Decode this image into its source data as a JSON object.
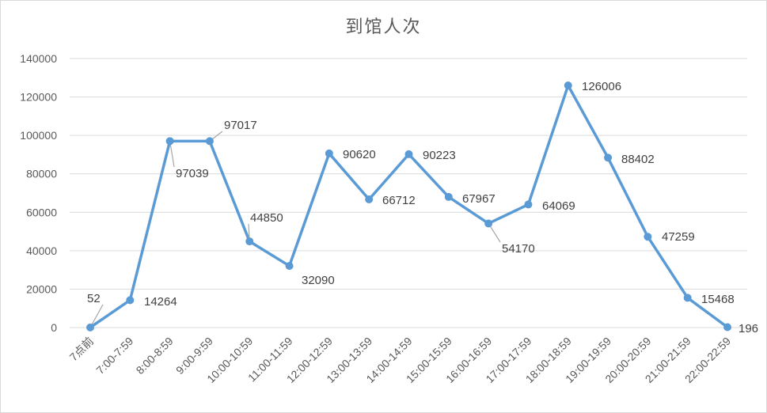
{
  "chart_data": {
    "type": "line",
    "title": "到馆人次",
    "xlabel": "",
    "ylabel": "",
    "categories": [
      "7点前",
      "7:00-7:59",
      "8:00-8:59",
      "9:00-9:59",
      "10:00-10:59",
      "11:00-11:59",
      "12:00-12:59",
      "13:00-13:59",
      "14:00-14:59",
      "15:00-15:59",
      "16:00-16:59",
      "17:00-17:59",
      "18:00-18:59",
      "19:00-19:59",
      "20:00-20:59",
      "21:00-21:59",
      "22:00-22:59"
    ],
    "values": [
      52,
      14264,
      97039,
      97017,
      44850,
      32090,
      90620,
      66712,
      90223,
      67967,
      54170,
      64069,
      126006,
      88402,
      47259,
      15468,
      196
    ],
    "ylim": [
      0,
      140000
    ],
    "yticks": [
      0,
      20000,
      40000,
      60000,
      80000,
      100000,
      120000,
      140000
    ],
    "grid": "horizontal",
    "legend": "none",
    "data_labels": true,
    "colors": {
      "line": "#5b9bd5",
      "grid": "#d9d9d9",
      "text": "#595959"
    }
  }
}
